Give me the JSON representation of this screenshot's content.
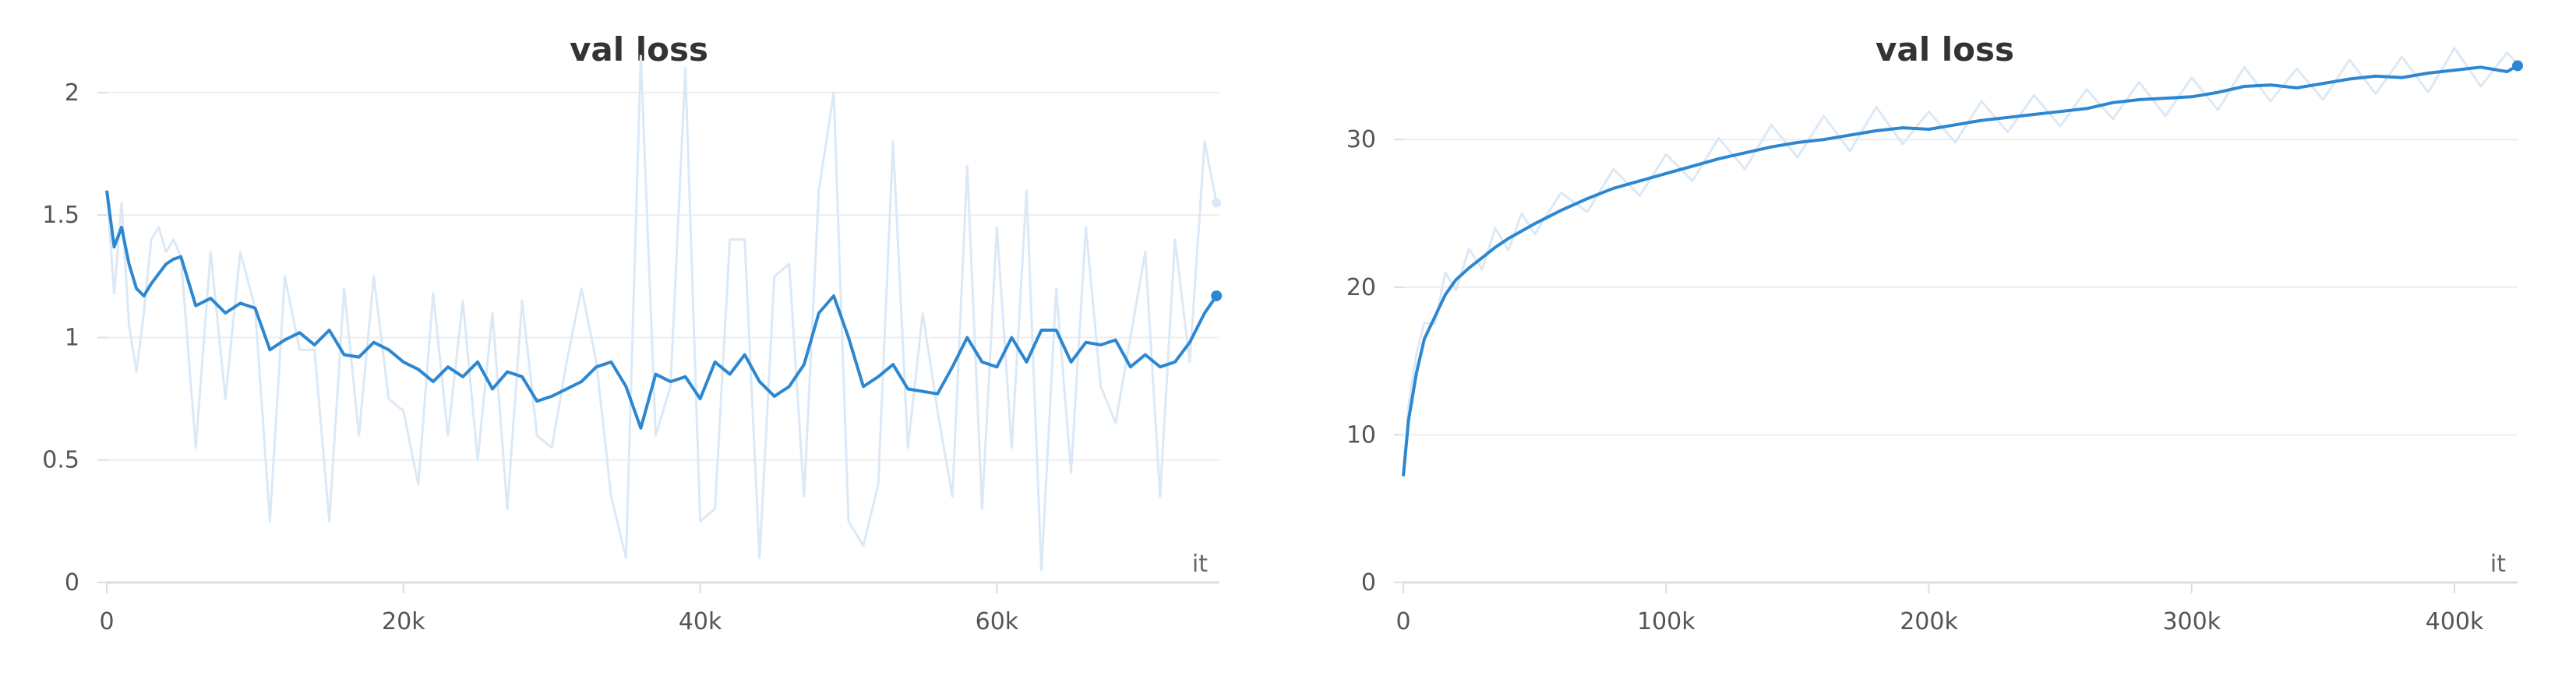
{
  "colors": {
    "line": "#2d87d0",
    "raw_line": "#dbe9f6",
    "grid": "#eeeeee",
    "axis": "#dddddd",
    "title": "#333333",
    "tick": "#555555"
  },
  "chart_data": [
    {
      "type": "line",
      "title": "val loss",
      "xlabel": "it",
      "ylabel": "",
      "xlim": [
        0,
        75000
      ],
      "ylim": [
        0,
        2.2
      ],
      "x_ticks": [
        0,
        20000,
        40000,
        60000
      ],
      "x_tick_labels": [
        "0",
        "20k",
        "40k",
        "60k"
      ],
      "y_ticks": [
        0,
        0.5,
        1,
        1.5,
        2
      ],
      "y_tick_labels": [
        "0",
        "0.5",
        "1",
        "1.5",
        "2"
      ],
      "grid": true,
      "series": [
        {
          "smoothed": true,
          "x": [
            0,
            500,
            1000,
            1500,
            2000,
            2500,
            3000,
            3500,
            4000,
            4500,
            5000,
            6000,
            7000,
            8000,
            9000,
            10000,
            11000,
            12000,
            13000,
            14000,
            15000,
            16000,
            17000,
            18000,
            19000,
            20000,
            21000,
            22000,
            23000,
            24000,
            25000,
            26000,
            27000,
            28000,
            29000,
            30000,
            31000,
            32000,
            33000,
            34000,
            35000,
            36000,
            37000,
            38000,
            39000,
            40000,
            41000,
            42000,
            43000,
            44000,
            45000,
            46000,
            47000,
            48000,
            49000,
            50000,
            51000,
            52000,
            53000,
            54000,
            55000,
            56000,
            57000,
            58000,
            59000,
            60000,
            61000,
            62000,
            63000,
            64000,
            65000,
            66000,
            67000,
            68000,
            69000,
            70000,
            71000,
            72000,
            73000,
            74000,
            74800
          ],
          "y": [
            1.6,
            1.37,
            1.45,
            1.3,
            1.2,
            1.17,
            1.22,
            1.26,
            1.3,
            1.32,
            1.33,
            1.13,
            1.16,
            1.1,
            1.14,
            1.12,
            0.95,
            0.99,
            1.02,
            0.97,
            1.03,
            0.93,
            0.92,
            0.98,
            0.95,
            0.9,
            0.87,
            0.82,
            0.88,
            0.84,
            0.9,
            0.79,
            0.86,
            0.84,
            0.74,
            0.76,
            0.79,
            0.82,
            0.88,
            0.9,
            0.8,
            0.63,
            0.85,
            0.82,
            0.84,
            0.75,
            0.9,
            0.85,
            0.93,
            0.82,
            0.76,
            0.8,
            0.89,
            1.1,
            1.17,
            1.0,
            0.8,
            0.84,
            0.89,
            0.79,
            0.78,
            0.77,
            0.88,
            1.0,
            0.9,
            0.88,
            1.0,
            0.9,
            1.03,
            1.03,
            0.9,
            0.98,
            0.97,
            0.99,
            0.88,
            0.93,
            0.88,
            0.9,
            0.98,
            1.1,
            1.17
          ]
        },
        {
          "raw": true,
          "x": [
            0,
            500,
            1000,
            1500,
            2000,
            2500,
            3000,
            3500,
            4000,
            4500,
            5000,
            6000,
            7000,
            8000,
            9000,
            10000,
            11000,
            12000,
            13000,
            14000,
            15000,
            16000,
            17000,
            18000,
            19000,
            20000,
            21000,
            22000,
            23000,
            24000,
            25000,
            26000,
            27000,
            28000,
            29000,
            30000,
            31000,
            32000,
            33000,
            34000,
            35000,
            36000,
            37000,
            38000,
            39000,
            40000,
            41000,
            42000,
            43000,
            44000,
            45000,
            46000,
            47000,
            48000,
            49000,
            50000,
            51000,
            52000,
            53000,
            54000,
            55000,
            56000,
            57000,
            58000,
            59000,
            60000,
            61000,
            62000,
            63000,
            64000,
            65000,
            66000,
            67000,
            68000,
            69000,
            70000,
            71000,
            72000,
            73000,
            74000,
            74800
          ],
          "y": [
            1.6,
            1.18,
            1.55,
            1.05,
            0.86,
            1.1,
            1.4,
            1.45,
            1.35,
            1.4,
            1.33,
            0.55,
            1.35,
            0.75,
            1.35,
            1.12,
            0.25,
            1.25,
            0.95,
            0.95,
            0.25,
            1.2,
            0.6,
            1.25,
            0.75,
            0.7,
            0.4,
            1.18,
            0.6,
            1.15,
            0.5,
            1.1,
            0.3,
            1.15,
            0.6,
            0.55,
            0.9,
            1.2,
            0.9,
            0.35,
            0.1,
            2.15,
            0.6,
            0.8,
            2.1,
            0.25,
            0.3,
            1.4,
            1.4,
            0.1,
            1.25,
            1.3,
            0.35,
            1.6,
            2.0,
            0.25,
            0.15,
            0.4,
            1.8,
            0.55,
            1.1,
            0.7,
            0.35,
            1.7,
            0.3,
            1.45,
            0.55,
            1.6,
            0.05,
            1.2,
            0.45,
            1.45,
            0.8,
            0.65,
            1.0,
            1.35,
            0.35,
            1.4,
            0.9,
            1.8,
            1.55
          ]
        }
      ]
    },
    {
      "type": "line",
      "title": "val loss",
      "xlabel": "it",
      "ylabel": "",
      "xlim": [
        0,
        424000
      ],
      "ylim": [
        0,
        36.5
      ],
      "x_ticks": [
        0,
        100000,
        200000,
        300000,
        400000
      ],
      "x_tick_labels": [
        "0",
        "100k",
        "200k",
        "300k",
        "400k"
      ],
      "y_ticks": [
        0,
        10,
        20,
        30
      ],
      "y_tick_labels": [
        "0",
        "10",
        "20",
        "30"
      ],
      "grid": true,
      "series": [
        {
          "smoothed": true,
          "x": [
            0,
            2000,
            5000,
            8000,
            12000,
            16000,
            20000,
            25000,
            30000,
            35000,
            40000,
            45000,
            50000,
            60000,
            70000,
            80000,
            90000,
            100000,
            110000,
            120000,
            130000,
            140000,
            150000,
            160000,
            170000,
            180000,
            190000,
            200000,
            210000,
            220000,
            230000,
            240000,
            250000,
            260000,
            270000,
            280000,
            290000,
            300000,
            310000,
            320000,
            330000,
            340000,
            350000,
            360000,
            370000,
            380000,
            390000,
            400000,
            410000,
            420000,
            424000
          ],
          "y": [
            7.2,
            11.0,
            14.2,
            16.5,
            18.0,
            19.5,
            20.5,
            21.3,
            22.0,
            22.7,
            23.3,
            23.8,
            24.3,
            25.2,
            26.0,
            26.7,
            27.2,
            27.7,
            28.2,
            28.7,
            29.1,
            29.5,
            29.8,
            30.0,
            30.3,
            30.6,
            30.8,
            30.7,
            31.0,
            31.3,
            31.5,
            31.7,
            31.9,
            32.1,
            32.5,
            32.7,
            32.8,
            32.9,
            33.2,
            33.6,
            33.7,
            33.5,
            33.8,
            34.1,
            34.3,
            34.2,
            34.5,
            34.7,
            34.9,
            34.6,
            35.0
          ]
        },
        {
          "raw": true,
          "x": [
            0,
            2000,
            5000,
            8000,
            12000,
            16000,
            20000,
            25000,
            30000,
            35000,
            40000,
            45000,
            50000,
            60000,
            70000,
            80000,
            90000,
            100000,
            110000,
            120000,
            130000,
            140000,
            150000,
            160000,
            170000,
            180000,
            190000,
            200000,
            210000,
            220000,
            230000,
            240000,
            250000,
            260000,
            270000,
            280000,
            290000,
            300000,
            310000,
            320000,
            330000,
            340000,
            350000,
            360000,
            370000,
            380000,
            390000,
            400000,
            410000,
            420000,
            424000
          ],
          "y": [
            7.2,
            12.0,
            15.5,
            17.6,
            17.5,
            21.0,
            19.8,
            22.6,
            21.2,
            24.0,
            22.5,
            25.0,
            23.6,
            26.4,
            25.1,
            28.0,
            26.2,
            29.0,
            27.2,
            30.1,
            28.0,
            31.0,
            28.8,
            31.6,
            29.2,
            32.2,
            29.7,
            31.9,
            29.8,
            32.6,
            30.5,
            33.0,
            30.9,
            33.4,
            31.4,
            33.9,
            31.6,
            34.2,
            32.0,
            34.9,
            32.6,
            34.8,
            32.7,
            35.4,
            33.1,
            35.6,
            33.2,
            36.2,
            33.6,
            35.9,
            35.1
          ]
        }
      ]
    }
  ]
}
